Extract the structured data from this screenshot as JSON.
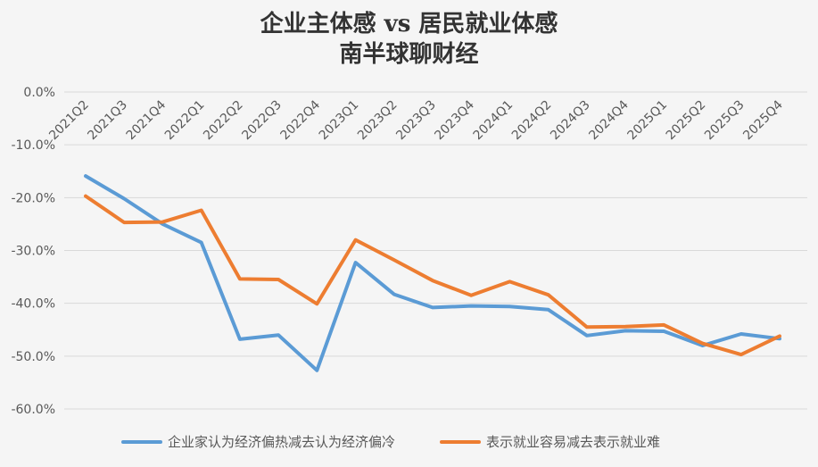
{
  "chart_data": {
    "type": "line",
    "title": "企业主体感 vs 居民就业体感",
    "subtitle": "南半球聊财经",
    "xlabel": "",
    "ylabel": "",
    "categories": [
      "2021Q2",
      "2021Q3",
      "2021Q4",
      "2022Q1",
      "2022Q2",
      "2022Q3",
      "2022Q4",
      "2023Q1",
      "2023Q2",
      "2023Q3",
      "2023Q4",
      "2024Q1",
      "2024Q2",
      "2024Q3",
      "2024Q4",
      "2025Q1",
      "2025Q2",
      "2025Q3",
      "2025Q4"
    ],
    "y_ticks": [
      "0.0%",
      "-10.0%",
      "-20.0%",
      "-30.0%",
      "-40.0%",
      "-50.0%",
      "-60.0%"
    ],
    "ylim": [
      -60,
      0
    ],
    "grid": true,
    "legend_position": "bottom",
    "series": [
      {
        "name": "企业家认为经济偏热减去认为经济偏冷",
        "color": "#5b9bd5",
        "values": [
          -15.9,
          -20.2,
          -25.0,
          -28.5,
          -46.8,
          -46.0,
          -52.7,
          -32.3,
          -38.3,
          -40.8,
          -40.5,
          -40.6,
          -41.2,
          -46.1,
          -45.2,
          -45.3,
          -48.0,
          -45.8,
          -46.7
        ]
      },
      {
        "name": "表示就业容易减去表示就业难",
        "color": "#ed7d31",
        "values": [
          -19.7,
          -24.7,
          -24.6,
          -22.4,
          -35.4,
          -35.5,
          -40.1,
          -28.0,
          -31.8,
          -35.7,
          -38.5,
          -35.9,
          -38.4,
          -44.5,
          -44.4,
          -44.1,
          -47.6,
          -49.7,
          -46.2
        ]
      }
    ]
  }
}
